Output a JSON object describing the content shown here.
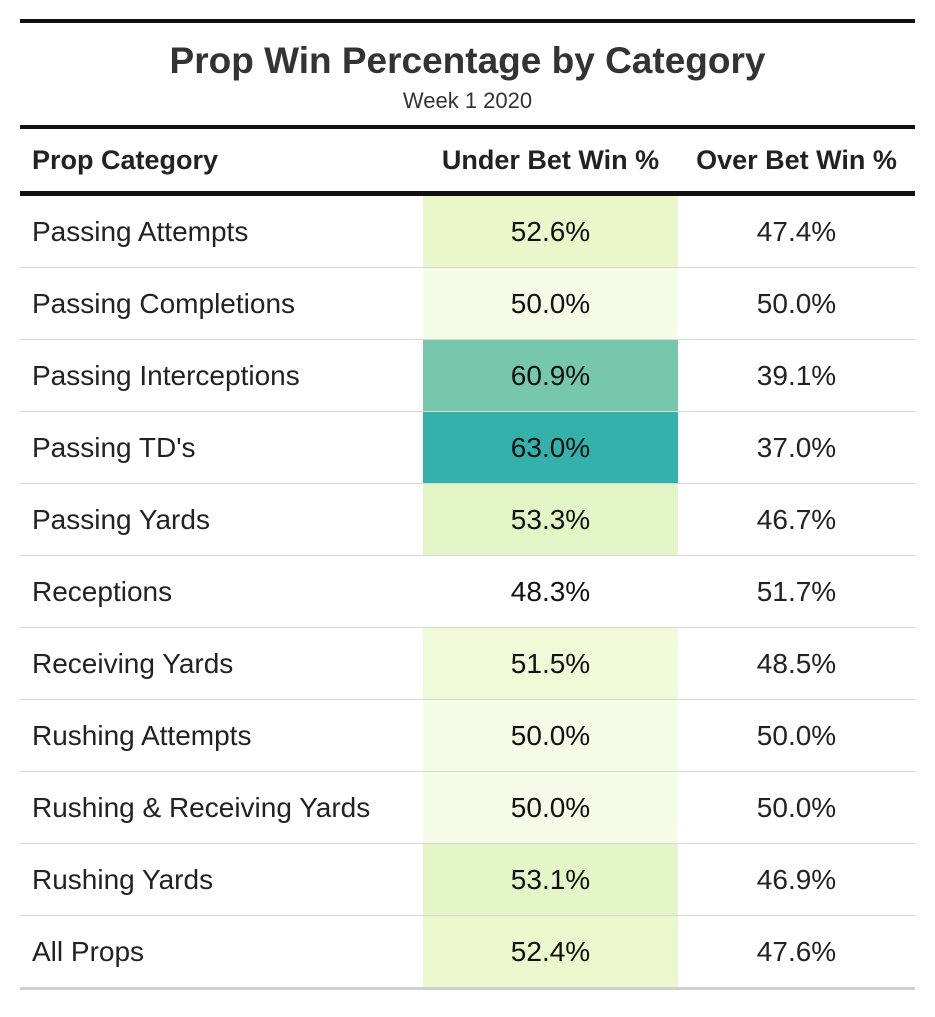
{
  "title": "Prop Win Percentage by Category",
  "subtitle": "Week 1 2020",
  "columns": [
    "Prop Category",
    "Under Bet Win %",
    "Over Bet Win %"
  ],
  "chart_data": {
    "type": "table",
    "title": "Prop Win Percentage by Category",
    "subtitle": "Week 1 2020",
    "columns": [
      "Prop Category",
      "Under Bet Win %",
      "Over Bet Win %"
    ],
    "rows": [
      {
        "category": "Passing Attempts",
        "under": "52.6%",
        "over": "47.4%",
        "under_bg": "#eaf7cb"
      },
      {
        "category": "Passing Completions",
        "under": "50.0%",
        "over": "50.0%",
        "under_bg": "#f6fbe8"
      },
      {
        "category": "Passing Interceptions",
        "under": "60.9%",
        "over": "39.1%",
        "under_bg": "#76c7ab"
      },
      {
        "category": "Passing TD's",
        "under": "63.0%",
        "over": "37.0%",
        "under_bg": "#35b1ac"
      },
      {
        "category": "Passing Yards",
        "under": "53.3%",
        "over": "46.7%",
        "under_bg": "#e3f4c6"
      },
      {
        "category": "Receptions",
        "under": "48.3%",
        "over": "51.7%",
        "under_bg": "#ffffff"
      },
      {
        "category": "Receiving Yards",
        "under": "51.5%",
        "over": "48.5%",
        "under_bg": "#f0f9d8"
      },
      {
        "category": "Rushing Attempts",
        "under": "50.0%",
        "over": "50.0%",
        "under_bg": "#f6fbe8"
      },
      {
        "category": "Rushing & Receiving Yards",
        "under": "50.0%",
        "over": "50.0%",
        "under_bg": "#f6fbe8"
      },
      {
        "category": "Rushing Yards",
        "under": "53.1%",
        "over": "46.9%",
        "under_bg": "#e4f5c7"
      },
      {
        "category": "All Props",
        "under": "52.4%",
        "over": "47.6%",
        "under_bg": "#ebf8cd"
      }
    ]
  }
}
